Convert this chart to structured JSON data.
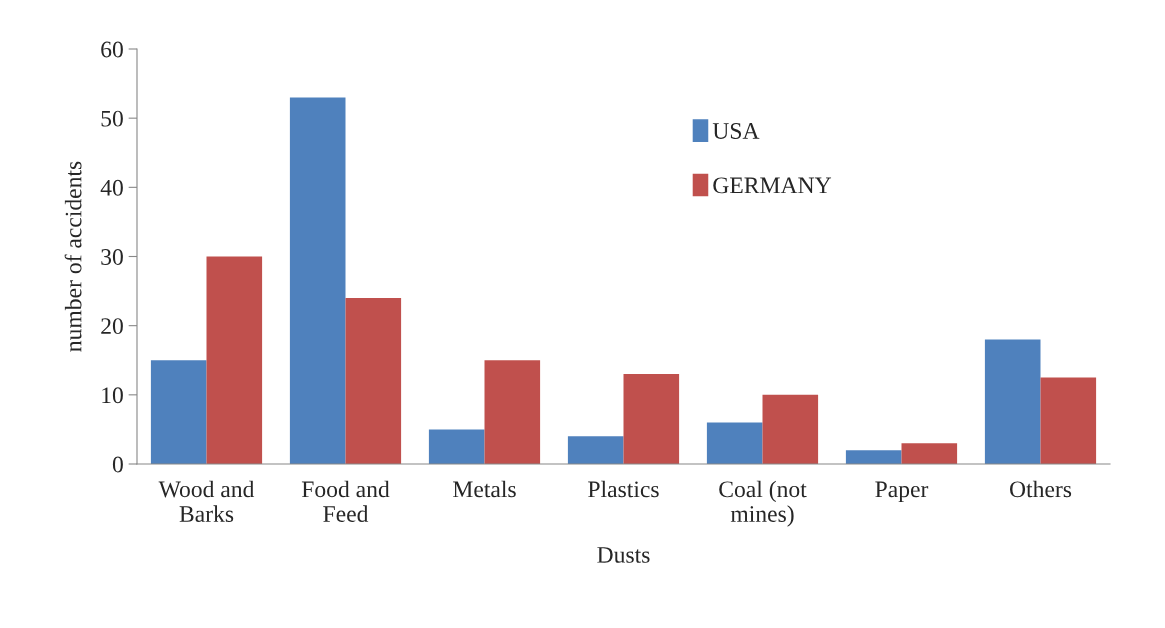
{
  "chart_data": {
    "type": "bar",
    "xlabel": "Dusts",
    "ylabel": "number of accidents",
    "categories": [
      "Wood and\nBarks",
      "Food and\nFeed",
      "Metals",
      "Plastics",
      "Coal (not\nmines)",
      "Paper",
      "Others"
    ],
    "series": [
      {
        "name": "USA",
        "color": "#4f81bd",
        "values": [
          15,
          53,
          5,
          4,
          6,
          2,
          18
        ]
      },
      {
        "name": "GERMANY",
        "color": "#c0504d",
        "values": [
          30,
          24,
          15,
          13,
          10,
          3,
          12.5
        ]
      }
    ],
    "ylim": [
      0,
      60
    ],
    "yticks": [
      0,
      10,
      20,
      30,
      40,
      50,
      60
    ],
    "grid": false,
    "legend": "top"
  }
}
